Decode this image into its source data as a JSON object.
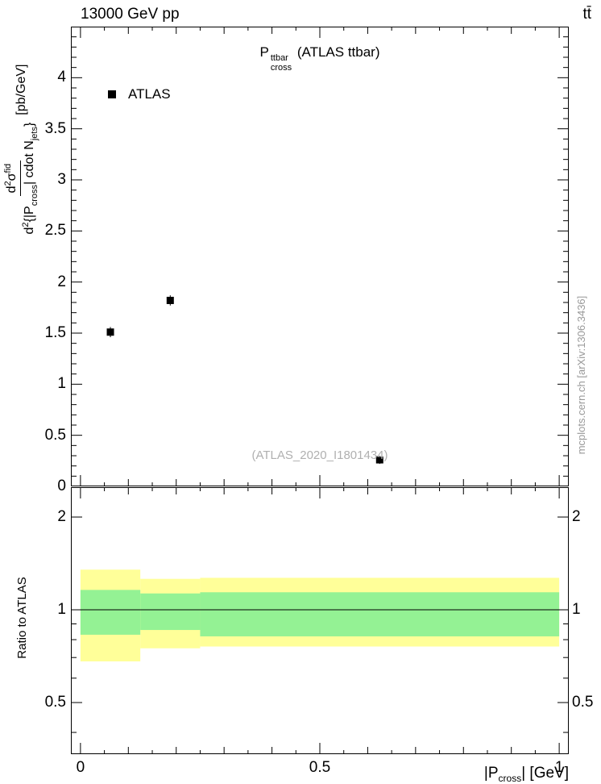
{
  "header": {
    "beam": "13000 GeV pp",
    "process": "tt̄"
  },
  "plot_title": {
    "base": "P",
    "sup": "ttbar",
    "sub": "cross",
    "suffix": " (ATLAS ttbar)"
  },
  "legend": {
    "items": [
      {
        "label": "ATLAS",
        "marker": "filled-square",
        "color": "#000000"
      }
    ]
  },
  "watermark": "(ATLAS_2020_I1801434)",
  "credit": "mcplots.cern.ch [arXiv:1306.3436]",
  "axes": {
    "main_y_title": {
      "num_d": "d",
      "num_exp": "2",
      "num_sigma": "σ",
      "num_sup": "fid",
      "den_d": "d",
      "den_exp": "2",
      "den_p1": "{|P",
      "den_sub1": "cross",
      "den_p2": "| cdot N",
      "den_sub2": "jets",
      "den_p3": "}",
      "units": "[pb/GeV]"
    },
    "ratio_y_title": "Ratio to ATLAS",
    "x_title": {
      "p1": "|P",
      "sub": "cross",
      "p2": "| [GeV]"
    }
  },
  "chart_data": [
    {
      "type": "scatter",
      "panel": "main",
      "title": "P^{ttbar}_{cross} (ATLAS ttbar)",
      "ylabel": "d^{2}σ^{fid} / d^{2}{|P_{cross}| cdot N_{jets}} [pb/GeV]",
      "xlim": [
        -0.02,
        1.02
      ],
      "ylim": [
        0,
        4.5
      ],
      "x_tick_range": [
        0,
        1
      ],
      "x_minor_step": 0.05,
      "x_medium_step": 0.1,
      "x_major_step": 0.5,
      "y_tick_range": [
        0,
        4.5
      ],
      "y_minor_step": 0.1,
      "y_major_step": 0.5,
      "x_label_values": [
        0,
        0.5,
        1
      ],
      "x_label_texts": [
        "0",
        "0.5",
        "1"
      ],
      "y_label_values": [
        0,
        0.5,
        1,
        1.5,
        2,
        2.5,
        3,
        3.5,
        4
      ],
      "y_label_texts": [
        "0",
        "0.5",
        "1",
        "1.5",
        "2",
        "2.5",
        "3",
        "3.5",
        "4"
      ],
      "series": [
        {
          "name": "ATLAS",
          "marker": "filled-square",
          "color": "#000000",
          "x": [
            0.0625,
            0.1875,
            0.625
          ],
          "x_bins": [
            [
              0,
              0.125
            ],
            [
              0.125,
              0.25
            ],
            [
              0.25,
              1.0
            ]
          ],
          "y": [
            1.51,
            1.82,
            0.26
          ],
          "y_err": [
            0.05,
            0.05,
            0.04
          ]
        }
      ]
    },
    {
      "type": "ratio-bands",
      "panel": "ratio",
      "ylabel": "Ratio to ATLAS",
      "xlabel": "|P_{cross}| [GeV]",
      "yscale": "log",
      "xlim": [
        -0.02,
        1.02
      ],
      "ylim": [
        0.34,
        2.5
      ],
      "y_label_values": [
        0.5,
        1,
        2
      ],
      "y_label_texts": [
        "0.5",
        "1",
        "2"
      ],
      "y_ticks_major": [
        0.5,
        1,
        2
      ],
      "y_ticks_minor": [
        0.4,
        0.6,
        0.7,
        0.8,
        0.9
      ],
      "reference_line": 1,
      "bands": [
        {
          "x_range": [
            0,
            0.125
          ],
          "yellow": [
            0.68,
            1.35
          ],
          "green": [
            0.83,
            1.16
          ]
        },
        {
          "x_range": [
            0.125,
            0.25
          ],
          "yellow": [
            0.75,
            1.26
          ],
          "green": [
            0.86,
            1.13
          ]
        },
        {
          "x_range": [
            0.25,
            1.0
          ],
          "yellow": [
            0.76,
            1.27
          ],
          "green": [
            0.82,
            1.14
          ]
        }
      ],
      "colors": {
        "yellow": "#ffff99",
        "green": "#94f294"
      }
    }
  ]
}
